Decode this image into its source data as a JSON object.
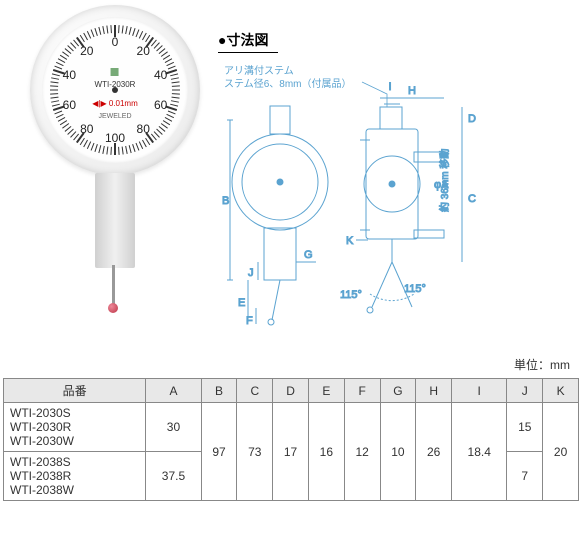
{
  "title_dim": "●寸法図",
  "stem_note1": "アリ溝付ステム",
  "stem_note2": "ステム径6、8mm（付属品）",
  "angle_note": "約 36mm 移動",
  "angle": "115°",
  "phi": "φA",
  "unit": "単位：mm",
  "dial": {
    "model": "WTI-2030R",
    "spec": "0.01mm",
    "brand": "JEWELED",
    "nums": [
      "0",
      "20",
      "40",
      "60",
      "80",
      "100",
      "80",
      "60",
      "40",
      "20"
    ]
  },
  "letters": [
    "A",
    "B",
    "C",
    "D",
    "E",
    "F",
    "G",
    "H",
    "I",
    "J",
    "K"
  ],
  "table": {
    "header": [
      "品番",
      "A",
      "B",
      "C",
      "D",
      "E",
      "F",
      "G",
      "H",
      "I",
      "J",
      "K"
    ],
    "rows": [
      {
        "parts": [
          "WTI-2030S",
          "WTI-2030R",
          "WTI-2030W"
        ],
        "A": "30",
        "J": "15"
      },
      {
        "parts": [
          "WTI-2038S",
          "WTI-2038R",
          "WTI-2038W"
        ],
        "A": "37.5",
        "J": "7"
      }
    ],
    "shared": {
      "B": "97",
      "C": "73",
      "D": "17",
      "E": "16",
      "F": "12",
      "G": "10",
      "H": "26",
      "I": "18.4",
      "K": "20"
    }
  },
  "colors": {
    "blue": "#5ba3d0",
    "grey": "#e8e8e8"
  }
}
